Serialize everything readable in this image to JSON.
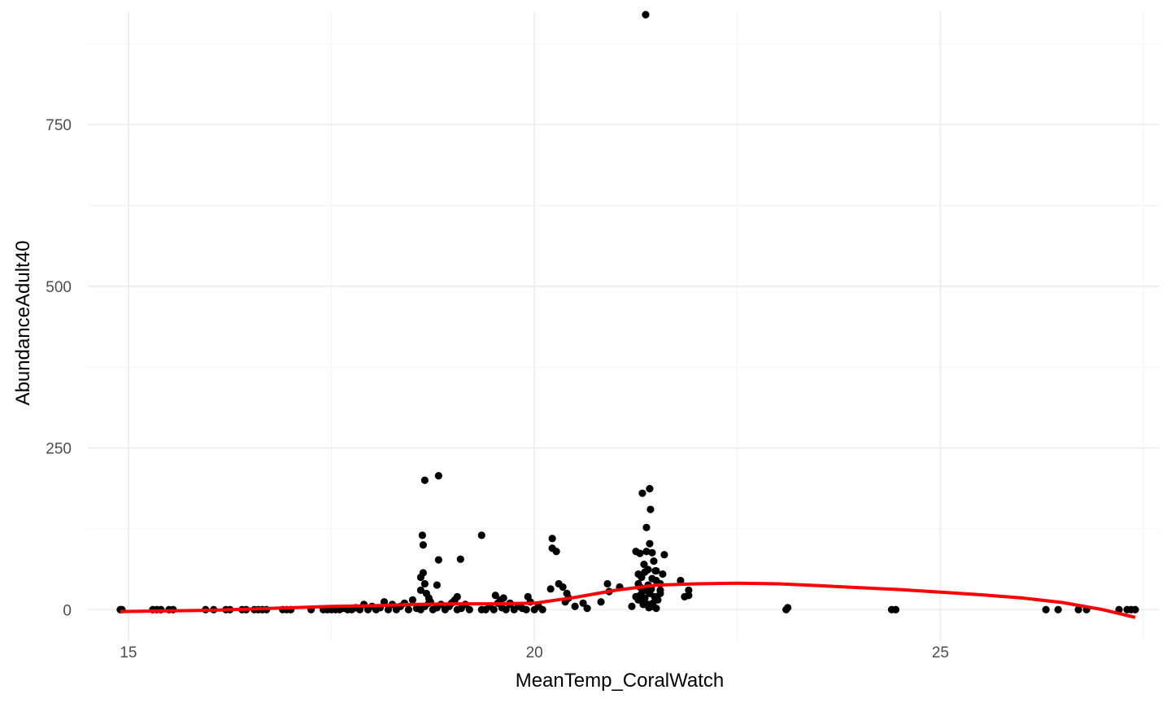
{
  "chart_data": {
    "type": "scatter",
    "title": "",
    "xlabel": "MeanTemp_CoralWatch",
    "ylabel": "AbundanceAdult40",
    "xlim": [
      14.5,
      27.7
    ],
    "ylim": [
      -50,
      925
    ],
    "x_major_ticks": [
      15,
      20,
      25
    ],
    "x_minor_ticks": [
      17.5,
      22.5,
      27.5
    ],
    "x_tick_labels": [
      "15",
      "20",
      "25"
    ],
    "y_major_ticks": [
      0,
      250,
      500,
      750
    ],
    "y_minor_ticks": [
      125,
      375,
      625,
      875
    ],
    "y_tick_labels": [
      "0",
      "250",
      "500",
      "750"
    ],
    "grid": true,
    "legend": "none",
    "colors": {
      "points": "#000000",
      "smooth_line": "#ff0000",
      "grid_major": "#ebebeb",
      "grid_minor": "#f3f3f3",
      "tick_text": "#4d4d4d",
      "axis_title": "#000000"
    },
    "series": [
      {
        "type": "points",
        "points": [
          [
            14.9,
            0
          ],
          [
            14.92,
            0
          ],
          [
            15.3,
            0
          ],
          [
            15.35,
            0
          ],
          [
            15.4,
            0
          ],
          [
            15.5,
            0
          ],
          [
            15.55,
            0
          ],
          [
            15.95,
            0
          ],
          [
            16.05,
            0
          ],
          [
            16.2,
            0
          ],
          [
            16.25,
            0
          ],
          [
            16.4,
            0
          ],
          [
            16.45,
            0
          ],
          [
            16.55,
            0
          ],
          [
            16.6,
            0
          ],
          [
            16.65,
            0
          ],
          [
            16.7,
            0
          ],
          [
            16.9,
            0
          ],
          [
            16.95,
            0
          ],
          [
            17.0,
            0
          ],
          [
            17.25,
            0
          ],
          [
            17.4,
            0
          ],
          [
            17.45,
            0
          ],
          [
            17.5,
            0
          ],
          [
            17.55,
            0
          ],
          [
            17.6,
            0
          ],
          [
            17.65,
            2
          ],
          [
            17.7,
            0
          ],
          [
            17.75,
            0
          ],
          [
            17.8,
            3
          ],
          [
            17.85,
            0
          ],
          [
            17.9,
            8
          ],
          [
            17.95,
            0
          ],
          [
            18.0,
            5
          ],
          [
            18.05,
            0
          ],
          [
            18.1,
            3
          ],
          [
            18.15,
            12
          ],
          [
            18.2,
            0
          ],
          [
            18.25,
            8
          ],
          [
            18.3,
            0
          ],
          [
            18.35,
            5
          ],
          [
            18.4,
            10
          ],
          [
            18.45,
            0
          ],
          [
            18.5,
            15
          ],
          [
            18.55,
            2
          ],
          [
            18.6,
            0
          ],
          [
            18.65,
            5
          ],
          [
            18.7,
            10
          ],
          [
            18.75,
            0
          ],
          [
            18.8,
            3
          ],
          [
            18.85,
            8
          ],
          [
            18.9,
            0
          ],
          [
            18.95,
            5
          ],
          [
            19.0,
            12
          ],
          [
            19.05,
            0
          ],
          [
            19.1,
            2
          ],
          [
            19.15,
            8
          ],
          [
            19.2,
            0
          ],
          [
            19.35,
            0
          ],
          [
            19.4,
            0
          ],
          [
            19.45,
            5
          ],
          [
            19.5,
            0
          ],
          [
            19.55,
            10
          ],
          [
            19.6,
            3
          ],
          [
            19.65,
            0
          ],
          [
            19.7,
            8
          ],
          [
            19.75,
            0
          ],
          [
            19.8,
            5
          ],
          [
            19.85,
            2
          ],
          [
            19.9,
            0
          ],
          [
            19.95,
            12
          ],
          [
            20.0,
            0
          ],
          [
            20.05,
            5
          ],
          [
            20.1,
            0
          ],
          [
            18.65,
            200
          ],
          [
            18.82,
            207
          ],
          [
            18.62,
            115
          ],
          [
            18.63,
            100
          ],
          [
            18.82,
            77
          ],
          [
            18.63,
            57
          ],
          [
            18.6,
            50
          ],
          [
            18.65,
            40
          ],
          [
            18.8,
            38
          ],
          [
            18.67,
            25
          ],
          [
            18.7,
            18
          ],
          [
            18.6,
            30
          ],
          [
            18.72,
            12
          ],
          [
            19.35,
            115
          ],
          [
            19.09,
            78
          ],
          [
            19.02,
            15
          ],
          [
            19.05,
            20
          ],
          [
            18.98,
            10
          ],
          [
            19.52,
            22
          ],
          [
            19.58,
            15
          ],
          [
            19.7,
            10
          ],
          [
            19.62,
            18
          ],
          [
            19.92,
            20
          ],
          [
            20.22,
            110
          ],
          [
            20.22,
            95
          ],
          [
            20.27,
            90
          ],
          [
            20.3,
            40
          ],
          [
            20.35,
            35
          ],
          [
            20.2,
            32
          ],
          [
            20.4,
            25
          ],
          [
            20.42,
            18
          ],
          [
            20.38,
            12
          ],
          [
            20.5,
            5
          ],
          [
            20.6,
            10
          ],
          [
            20.65,
            2
          ],
          [
            20.82,
            12
          ],
          [
            20.9,
            40
          ],
          [
            20.92,
            28
          ],
          [
            21.05,
            35
          ],
          [
            21.2,
            5
          ],
          [
            21.25,
            20
          ],
          [
            21.25,
            90
          ],
          [
            21.3,
            87
          ],
          [
            21.28,
            55
          ],
          [
            21.28,
            40
          ],
          [
            21.33,
            180
          ],
          [
            21.42,
            187
          ],
          [
            21.38,
            127
          ],
          [
            21.43,
            155
          ],
          [
            21.42,
            102
          ],
          [
            21.38,
            90
          ],
          [
            21.45,
            88
          ],
          [
            21.47,
            75
          ],
          [
            21.35,
            70
          ],
          [
            21.4,
            62
          ],
          [
            21.36,
            58
          ],
          [
            21.32,
            50
          ],
          [
            21.45,
            48
          ],
          [
            21.5,
            45
          ],
          [
            21.55,
            40
          ],
          [
            21.3,
            35
          ],
          [
            21.38,
            30
          ],
          [
            21.42,
            25
          ],
          [
            21.48,
            20
          ],
          [
            21.52,
            15
          ],
          [
            21.35,
            12
          ],
          [
            21.4,
            8
          ],
          [
            21.45,
            5
          ],
          [
            21.5,
            2
          ],
          [
            21.3,
            22
          ],
          [
            21.33,
            28
          ],
          [
            21.36,
            18
          ],
          [
            21.4,
            38
          ],
          [
            21.44,
            32
          ],
          [
            21.46,
            10
          ],
          [
            21.49,
            60
          ],
          [
            21.28,
            15
          ],
          [
            21.34,
            8
          ],
          [
            21.41,
            3
          ],
          [
            21.55,
            30
          ],
          [
            21.6,
            85
          ],
          [
            21.58,
            55
          ],
          [
            21.55,
            25
          ],
          [
            21.5,
            60
          ],
          [
            21.8,
            45
          ],
          [
            21.85,
            20
          ],
          [
            21.9,
            30
          ],
          [
            21.9,
            22
          ],
          [
            21.37,
            920
          ],
          [
            23.1,
            0
          ],
          [
            23.12,
            3
          ],
          [
            24.4,
            0
          ],
          [
            24.45,
            0
          ],
          [
            26.3,
            0
          ],
          [
            26.45,
            0
          ],
          [
            26.7,
            0
          ],
          [
            26.8,
            0
          ],
          [
            27.2,
            0
          ],
          [
            27.3,
            0
          ],
          [
            27.35,
            0
          ],
          [
            27.4,
            0
          ]
        ]
      },
      {
        "type": "smooth",
        "points": [
          [
            14.9,
            -3
          ],
          [
            15.5,
            -2
          ],
          [
            16.0,
            -1
          ],
          [
            16.5,
            1
          ],
          [
            17.0,
            3
          ],
          [
            17.5,
            5
          ],
          [
            18.0,
            6
          ],
          [
            18.5,
            8
          ],
          [
            19.0,
            9
          ],
          [
            19.5,
            9
          ],
          [
            20.0,
            10
          ],
          [
            20.5,
            19
          ],
          [
            21.0,
            30
          ],
          [
            21.5,
            38
          ],
          [
            22.0,
            40
          ],
          [
            22.5,
            41
          ],
          [
            23.0,
            40
          ],
          [
            23.5,
            37
          ],
          [
            24.0,
            34
          ],
          [
            24.5,
            31
          ],
          [
            25.0,
            27
          ],
          [
            25.5,
            23
          ],
          [
            26.0,
            18
          ],
          [
            26.5,
            11
          ],
          [
            27.0,
            0
          ],
          [
            27.4,
            -12
          ]
        ]
      }
    ]
  }
}
